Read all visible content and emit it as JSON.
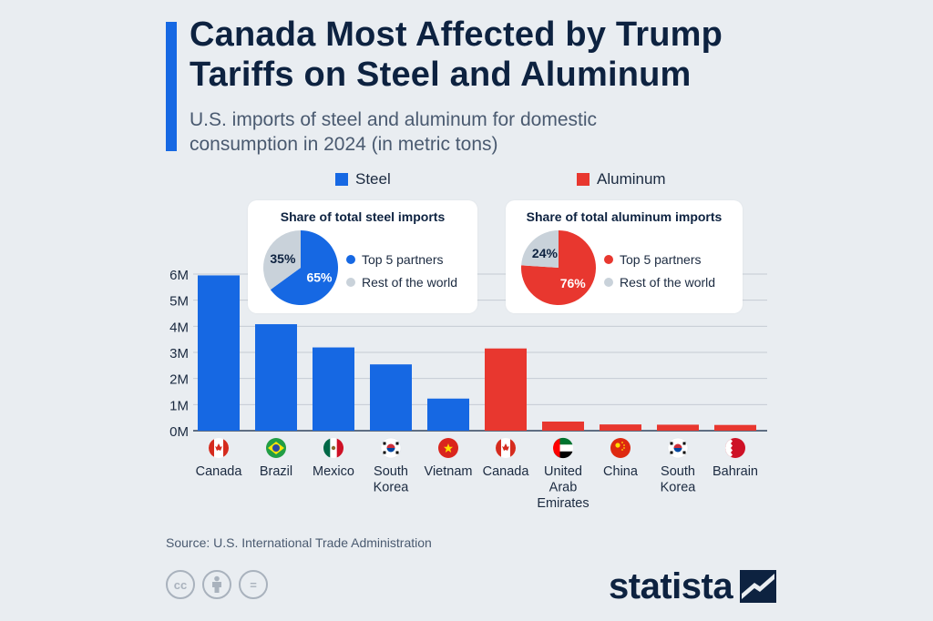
{
  "header": {
    "title_line1": "Canada Most Affected by Trump",
    "title_line2": "Tariffs on Steel and Aluminum",
    "subtitle_line1": "U.S. imports of steel and aluminum for domestic",
    "subtitle_line2": "consumption in 2024 (in metric tons)"
  },
  "legend": {
    "steel": "Steel",
    "aluminum": "Aluminum"
  },
  "colors": {
    "steel": "#1668e3",
    "aluminum": "#e8372f",
    "rest": "#c9d2da",
    "accent": "#1668e3"
  },
  "steel_card": {
    "title": "Share of total steel imports",
    "top5_label": "Top 5 partners",
    "rest_label": "Rest of the world",
    "top5_pct_label": "65%",
    "rest_pct_label": "35%"
  },
  "aluminum_card": {
    "title": "Share of total aluminum imports",
    "top5_label": "Top 5 partners",
    "rest_label": "Rest of the world",
    "top5_pct_label": "76%",
    "rest_pct_label": "24%"
  },
  "chart_data": [
    {
      "type": "bar",
      "categories": [
        "Canada",
        "Brazil",
        "Mexico",
        "South Korea",
        "Vietnam",
        "Canada",
        "United Arab Emirates",
        "China",
        "South Korea",
        "Bahrain"
      ],
      "category_label_lines": [
        [
          "Canada"
        ],
        [
          "Brazil"
        ],
        [
          "Mexico"
        ],
        [
          "South",
          "Korea"
        ],
        [
          "Vietnam"
        ],
        [
          "Canada"
        ],
        [
          "United",
          "Arab",
          "Emirates"
        ],
        [
          "China"
        ],
        [
          "South",
          "Korea"
        ],
        [
          "Bahrain"
        ]
      ],
      "flags": [
        "canada-flag",
        "brazil-flag",
        "mexico-flag",
        "south-korea-flag",
        "vietnam-flag",
        "canada-flag",
        "uae-flag",
        "china-flag",
        "south-korea-flag",
        "bahrain-flag"
      ],
      "series": [
        {
          "name": "Steel",
          "values": [
            5950000,
            4080000,
            3190000,
            2540000,
            1230000,
            null,
            null,
            null,
            null,
            null
          ]
        },
        {
          "name": "Aluminum",
          "values": [
            null,
            null,
            null,
            null,
            null,
            3150000,
            350000,
            240000,
            230000,
            220000
          ]
        }
      ],
      "yticks": [
        "0M",
        "1M",
        "2M",
        "3M",
        "4M",
        "5M",
        "6M"
      ],
      "ylim": [
        0,
        6000000
      ],
      "grid": true,
      "legend": "top"
    },
    {
      "type": "pie",
      "title": "Share of total steel imports",
      "labels": [
        "Top 5 partners",
        "Rest of the world"
      ],
      "values": [
        65,
        35
      ]
    },
    {
      "type": "pie",
      "title": "Share of total aluminum imports",
      "labels": [
        "Top 5 partners",
        "Rest of the world"
      ],
      "values": [
        76,
        24
      ]
    }
  ],
  "source": "Source: U.S. International Trade Administration",
  "license_icons": [
    "cc-icon",
    "attribution-icon",
    "no-derivatives-icon"
  ],
  "license_glyphs": {
    "cc": "cc",
    "nd": "="
  },
  "logo": {
    "text": "statista"
  }
}
